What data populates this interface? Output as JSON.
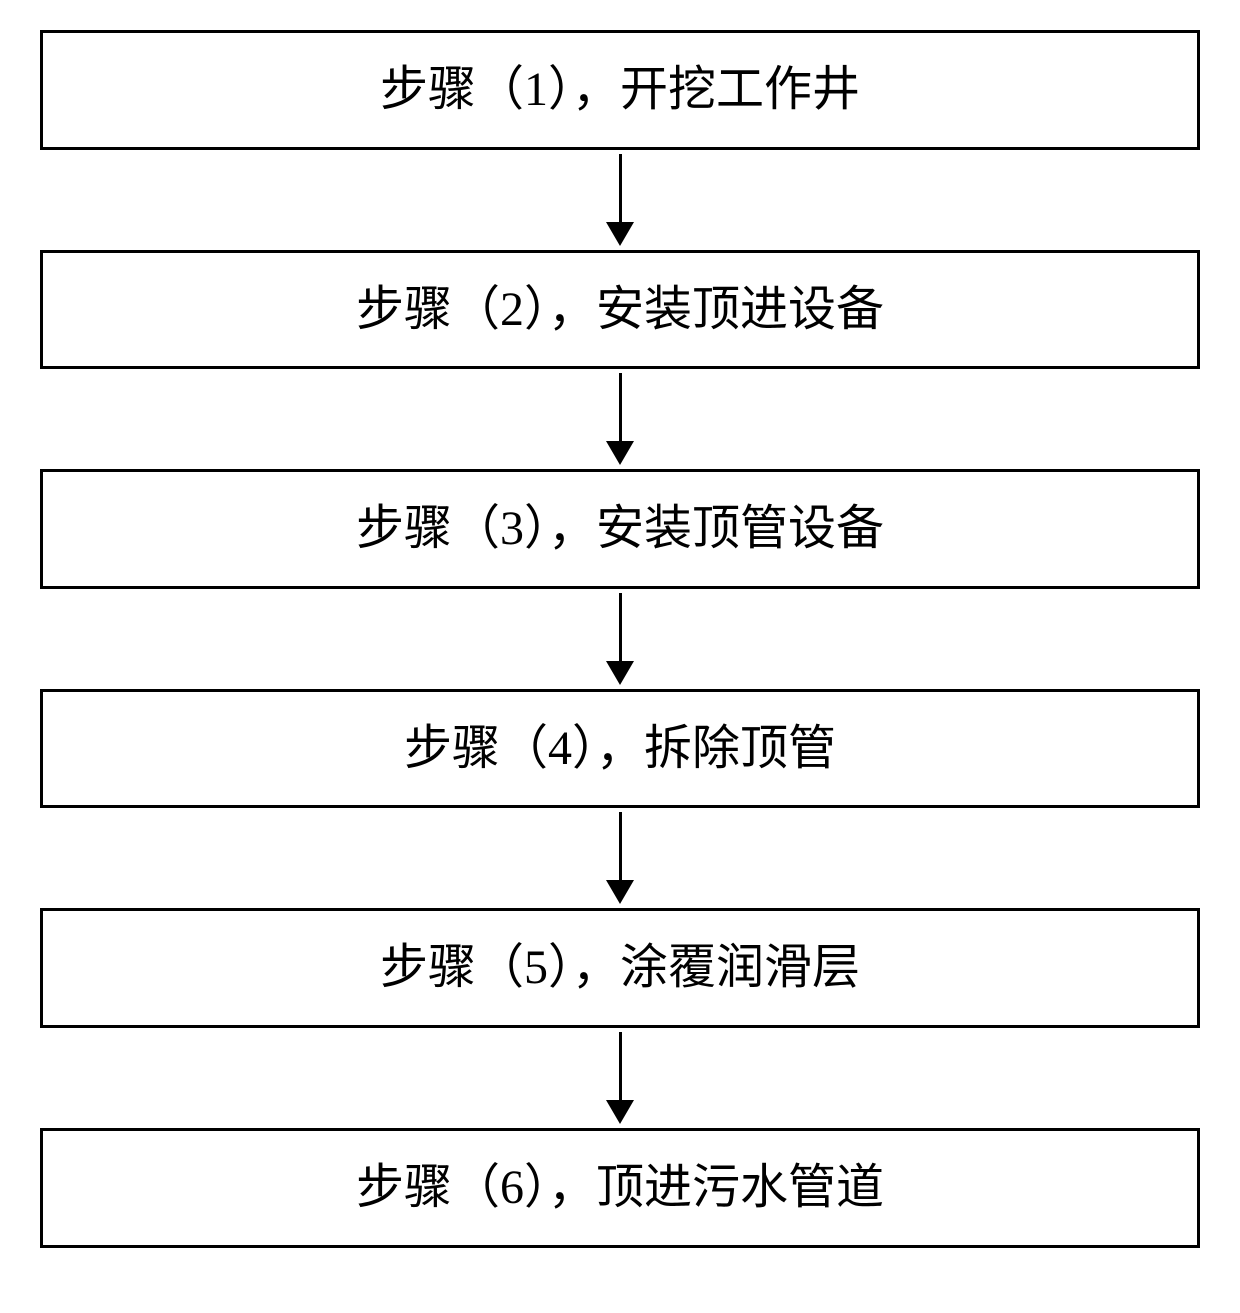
{
  "flowchart": {
    "type": "flowchart",
    "direction": "vertical",
    "background_color": "#ffffff",
    "box_border_color": "#000000",
    "box_border_width": 3,
    "box_background_color": "#ffffff",
    "text_color": "#000000",
    "font_family": "SimSun",
    "font_size": 48,
    "arrow_color": "#000000",
    "arrow_line_width": 3,
    "arrow_line_length": 70,
    "arrow_head_width": 28,
    "arrow_head_height": 24,
    "box_padding": 28,
    "steps": [
      {
        "label": "步骤（1），开挖工作井"
      },
      {
        "label": "步骤（2），安装顶进设备"
      },
      {
        "label": "步骤（3），安装顶管设备"
      },
      {
        "label": "步骤（4），拆除顶管"
      },
      {
        "label": "步骤（5），涂覆润滑层"
      },
      {
        "label": "步骤（6），顶进污水管道"
      }
    ]
  }
}
